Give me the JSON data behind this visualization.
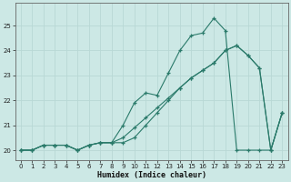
{
  "xlabel": "Humidex (Indice chaleur)",
  "bg_color": "#cce8e5",
  "grid_color": "#b8d8d5",
  "line_color": "#2a7a6a",
  "xlim": [
    -0.5,
    23.5
  ],
  "ylim": [
    19.6,
    25.9
  ],
  "xticks": [
    0,
    1,
    2,
    3,
    4,
    5,
    6,
    7,
    8,
    9,
    10,
    11,
    12,
    13,
    14,
    15,
    16,
    17,
    18,
    19,
    20,
    21,
    22,
    23
  ],
  "yticks": [
    20,
    21,
    22,
    23,
    24,
    25
  ],
  "line1_x": [
    0,
    1,
    2,
    3,
    4,
    5,
    6,
    7,
    8,
    9,
    10,
    11,
    12,
    13,
    14,
    15,
    16,
    17,
    18,
    19,
    20,
    21,
    22,
    23
  ],
  "line1_y": [
    20.0,
    20.0,
    20.2,
    20.2,
    20.2,
    20.0,
    20.2,
    20.3,
    20.3,
    20.3,
    20.5,
    21.0,
    21.5,
    22.0,
    22.5,
    22.9,
    23.2,
    23.5,
    24.0,
    24.2,
    23.8,
    23.3,
    20.0,
    21.5
  ],
  "line2_x": [
    0,
    1,
    2,
    3,
    4,
    5,
    6,
    7,
    8,
    9,
    10,
    11,
    12,
    13,
    14,
    15,
    16,
    17,
    18,
    19,
    20,
    21,
    22,
    23
  ],
  "line2_y": [
    20.0,
    20.0,
    20.2,
    20.2,
    20.2,
    20.0,
    20.2,
    20.3,
    20.3,
    21.0,
    21.9,
    22.3,
    22.2,
    23.1,
    24.0,
    24.6,
    24.7,
    25.3,
    24.8,
    20.0,
    20.0,
    20.0,
    20.0,
    21.5
  ],
  "line3_x": [
    0,
    1,
    2,
    3,
    4,
    5,
    6,
    7,
    8,
    9,
    10,
    11,
    12,
    13,
    14,
    15,
    16,
    17,
    18,
    19,
    20,
    21,
    22,
    23
  ],
  "line3_y": [
    20.0,
    20.0,
    20.2,
    20.2,
    20.2,
    20.0,
    20.2,
    20.3,
    20.3,
    20.5,
    20.9,
    21.3,
    21.7,
    22.1,
    22.5,
    22.9,
    23.2,
    23.5,
    24.0,
    24.2,
    23.8,
    23.3,
    20.0,
    21.5
  ]
}
